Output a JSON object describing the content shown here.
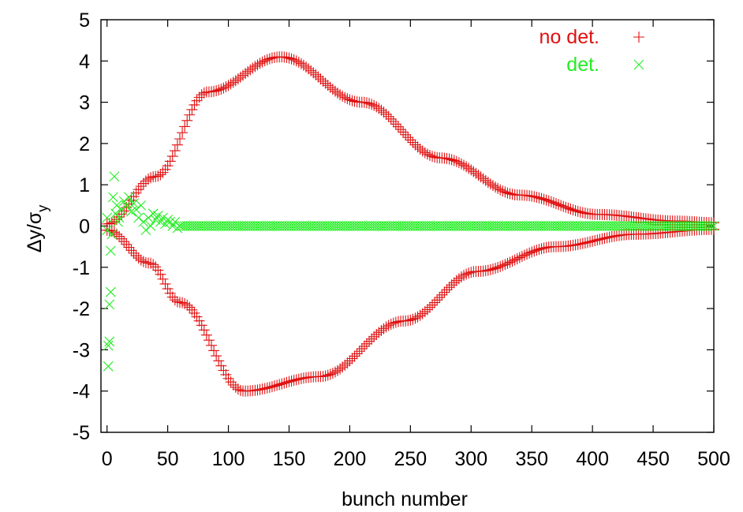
{
  "chart_data": {
    "type": "scatter",
    "xlabel": "bunch number",
    "ylabel": {
      "base": "Δy/σ",
      "sub": "y"
    },
    "xlim": [
      -5,
      500
    ],
    "ylim": [
      -5,
      5
    ],
    "xticks": [
      "0",
      "50",
      "100",
      "150",
      "200",
      "250",
      "300",
      "350",
      "400",
      "450",
      "500"
    ],
    "yticks": [
      "-5",
      "-4",
      "-3",
      "-2",
      "-1",
      "0",
      "1",
      "2",
      "3",
      "4",
      "5"
    ],
    "legend_position": "top-right",
    "grid": false,
    "series": [
      {
        "name": "no det.",
        "marker": "plus",
        "color": "#e01010",
        "x_range": [
          0,
          500
        ],
        "x_step": 2,
        "envelopes": [
          {
            "x": [
              0,
              40,
              83,
              143,
              210,
              275,
              340,
              405,
              470,
              500
            ],
            "y": [
              0.05,
              1.2,
              3.25,
              4.1,
              3.0,
              1.65,
              0.75,
              0.28,
              0.12,
              0.08
            ]
          },
          {
            "x": [
              0,
              35,
              60,
              113,
              175,
              245,
              305,
              370,
              435,
              500
            ],
            "y": [
              -0.1,
              -0.9,
              -1.85,
              -4.0,
              -3.65,
              -2.3,
              -1.1,
              -0.5,
              -0.2,
              -0.08
            ]
          }
        ]
      },
      {
        "name": "det.",
        "marker": "cross",
        "color": "#22ee22",
        "x_range": [
          0,
          500
        ],
        "x_step": 2,
        "early_points": [
          {
            "x": 0,
            "y": 0.2
          },
          {
            "x": 0,
            "y": -0.1
          },
          {
            "x": 1,
            "y": -3.4
          },
          {
            "x": 1,
            "y": -2.9
          },
          {
            "x": 2,
            "y": -2.8
          },
          {
            "x": 2,
            "y": -1.9
          },
          {
            "x": 3,
            "y": -1.6
          },
          {
            "x": 3,
            "y": -0.6
          },
          {
            "x": 4,
            "y": -0.2
          },
          {
            "x": 5,
            "y": 0.7
          },
          {
            "x": 6,
            "y": 1.2
          },
          {
            "x": 7,
            "y": 0.3
          },
          {
            "x": 8,
            "y": 0.5
          },
          {
            "x": 9,
            "y": 0.1
          },
          {
            "x": 10,
            "y": 0.2
          },
          {
            "x": 12,
            "y": 0.4
          },
          {
            "x": 14,
            "y": 0.6
          },
          {
            "x": 16,
            "y": 0.5
          },
          {
            "x": 18,
            "y": 0.7
          },
          {
            "x": 20,
            "y": 0.35
          },
          {
            "x": 22,
            "y": 0.55
          },
          {
            "x": 24,
            "y": 0.4
          },
          {
            "x": 26,
            "y": 0.2
          },
          {
            "x": 28,
            "y": 0.5
          },
          {
            "x": 30,
            "y": 0.1
          },
          {
            "x": 32,
            "y": -0.1
          },
          {
            "x": 34,
            "y": 0.2
          },
          {
            "x": 36,
            "y": 0.0
          },
          {
            "x": 38,
            "y": 0.3
          },
          {
            "x": 40,
            "y": 0.15
          },
          {
            "x": 42,
            "y": 0.25
          },
          {
            "x": 44,
            "y": 0.1
          },
          {
            "x": 46,
            "y": 0.2
          },
          {
            "x": 48,
            "y": 0.05
          },
          {
            "x": 50,
            "y": 0.15
          },
          {
            "x": 52,
            "y": 0.1
          },
          {
            "x": 54,
            "y": 0.0
          },
          {
            "x": 56,
            "y": 0.1
          },
          {
            "x": 58,
            "y": -0.05
          }
        ],
        "tail_level": 0.0
      }
    ]
  }
}
